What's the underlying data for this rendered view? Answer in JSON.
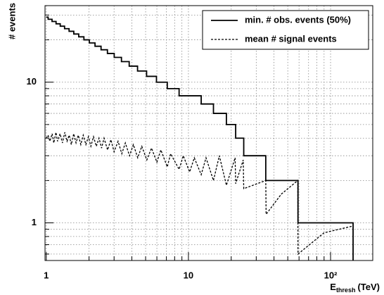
{
  "chart_data": {
    "type": "step",
    "y_label": "# events",
    "x_label": {
      "main": "E",
      "sub": "thresh",
      "unit": "(TeV)"
    },
    "log_x": true,
    "log_y": true,
    "grid": true,
    "legend": "upper right",
    "xlim": [
      0.98,
      198
    ],
    "ylim": [
      0.54,
      35
    ],
    "xticks": [
      1,
      10,
      {
        "value": 100,
        "label": "10²"
      }
    ],
    "xminorticks": [
      2,
      3,
      4,
      5,
      6,
      7,
      8,
      9,
      20,
      30,
      40,
      50,
      60,
      70,
      80,
      90
    ],
    "yticks": [
      1,
      10
    ],
    "yminorticks": [
      0.6,
      0.7,
      0.8,
      0.9,
      2,
      3,
      4,
      5,
      6,
      7,
      8,
      9,
      20,
      30
    ],
    "series": [
      {
        "name": "min. # obs. events (50%)",
        "color": "#000000",
        "style": "solid",
        "x": [
          1.0,
          1.031,
          1.098,
          1.172,
          1.254,
          1.345,
          1.447,
          1.562,
          1.692,
          1.84,
          2.008,
          2.203,
          2.429,
          2.693,
          3.006,
          3.38,
          3.832,
          4.387,
          5.079,
          5.96,
          7.1,
          8.6,
          12.3,
          15.0,
          18.5,
          21.5,
          24.5,
          35,
          59,
          144
        ],
        "values": [
          29,
          28,
          27,
          26,
          25,
          24,
          23,
          22,
          21,
          20,
          19,
          18,
          17,
          16,
          15,
          14,
          13,
          12,
          11,
          10,
          9,
          8,
          7,
          6,
          5,
          4,
          3,
          2,
          1,
          0
        ]
      },
      {
        "name": "mean # signal events",
        "color": "#000000",
        "style": "dashed",
        "x": [
          1.0,
          1.03,
          1.06,
          1.1,
          1.13,
          1.17,
          1.2,
          1.25,
          1.3,
          1.35,
          1.4,
          1.45,
          1.5,
          1.56,
          1.62,
          1.68,
          1.75,
          1.82,
          1.9,
          1.98,
          2.06,
          2.15,
          2.25,
          2.35,
          2.45,
          2.55,
          2.7,
          2.85,
          3.0,
          3.2,
          3.4,
          3.6,
          3.85,
          4.1,
          4.4,
          4.7,
          5.1,
          5.5,
          6.0,
          6.4,
          7.1,
          7.5,
          8.6,
          9.2,
          10.2,
          11,
          12.3,
          13.3,
          15.0,
          16.5,
          18.5,
          21.3,
          21.5,
          24.3,
          24.5,
          35,
          35.2,
          45,
          58.8,
          59,
          90,
          144
        ],
        "values": [
          4.0,
          4.2,
          3.8,
          4.3,
          3.7,
          4.4,
          3.8,
          4.3,
          3.7,
          4.4,
          3.8,
          4.2,
          3.6,
          4.3,
          3.7,
          4.2,
          3.6,
          4.2,
          3.6,
          4.1,
          3.5,
          4.1,
          3.5,
          4.0,
          3.4,
          4.0,
          3.3,
          3.9,
          3.2,
          3.8,
          3.1,
          3.7,
          3.0,
          3.6,
          2.9,
          3.5,
          2.8,
          3.4,
          2.7,
          3.3,
          2.5,
          3.1,
          2.4,
          3.0,
          2.3,
          2.9,
          2.2,
          2.9,
          2.0,
          3.0,
          1.85,
          2.9,
          1.9,
          2.8,
          1.75,
          2.0,
          1.15,
          1.6,
          2.0,
          0.6,
          0.85,
          0.95
        ]
      }
    ]
  }
}
